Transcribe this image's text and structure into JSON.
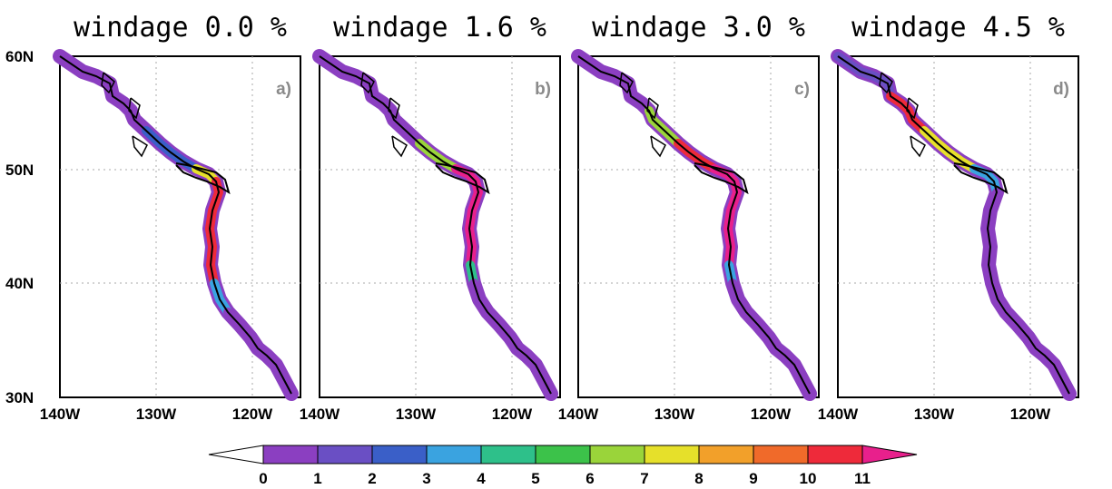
{
  "panels": [
    {
      "title": "windage 0.0 %",
      "label": "a)"
    },
    {
      "title": "windage 1.6 %",
      "label": "b)"
    },
    {
      "title": "windage 3.0 %",
      "label": "c)"
    },
    {
      "title": "windage 4.5 %",
      "label": "d)"
    }
  ],
  "axes": {
    "lat_ticks": [
      "60N",
      "50N",
      "40N",
      "30N"
    ],
    "lon_ticks": [
      "140W",
      "130W",
      "120W"
    ],
    "lat_range": [
      30,
      60
    ],
    "lon_range": [
      -140,
      -115
    ],
    "grid": "dotted"
  },
  "colorbar": {
    "labels": [
      "0",
      "1",
      "2",
      "3",
      "4",
      "5",
      "6",
      "7",
      "8",
      "9",
      "10",
      "11"
    ],
    "colors": [
      "#ffffff",
      "#8b3fc1",
      "#6a4fc4",
      "#3a5fc8",
      "#3aa3e0",
      "#2ec08a",
      "#3cc24a",
      "#9ad43a",
      "#e6e02a",
      "#f2a02a",
      "#f06a2a",
      "#ee2a3a",
      "#e8208c"
    ]
  },
  "colors": {
    "coast": "#000000",
    "buffer": "#8b3fc1",
    "grid": "#aaaaaa"
  }
}
